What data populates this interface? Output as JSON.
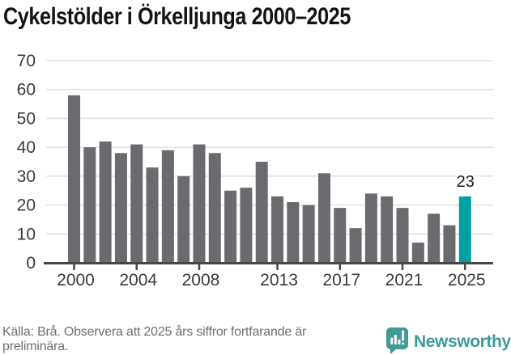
{
  "title": "Cykelstölder i Örkelljunga 2000–2025",
  "chart_data": {
    "type": "bar",
    "title": "Cykelstölder i Örkelljunga 2000–2025",
    "x": [
      2000,
      2001,
      2002,
      2003,
      2004,
      2005,
      2006,
      2007,
      2008,
      2009,
      2010,
      2011,
      2012,
      2013,
      2014,
      2015,
      2016,
      2017,
      2018,
      2019,
      2020,
      2021,
      2022,
      2023,
      2024,
      2025
    ],
    "values": [
      58,
      40,
      42,
      38,
      41,
      33,
      39,
      30,
      41,
      38,
      25,
      26,
      35,
      23,
      21,
      20,
      31,
      19,
      12,
      24,
      23,
      19,
      7,
      17,
      13,
      23
    ],
    "highlight_x": 2025,
    "annotation": {
      "x": 2025,
      "text": "23"
    },
    "xticks": [
      2000,
      2004,
      2008,
      2013,
      2017,
      2021,
      2025
    ],
    "yticks": [
      0,
      10,
      20,
      30,
      40,
      50,
      60,
      70
    ],
    "ylim": [
      0,
      70
    ],
    "grid": "horizontal",
    "legend": "none",
    "bar_color": "#6b6b6f",
    "highlight_color": "#00a0a3",
    "axis_color": "#47474a",
    "gridline_color": "#e3e3e3",
    "tick_label_color": "#3a3a3a",
    "annotation_color": "#1d1d1d"
  },
  "footer": {
    "note": "Källa: Brå. Observera att 2025 års siffror fortfarande är preliminära."
  },
  "branding": {
    "name": "Newsworthy",
    "icon": "newsworthy-speech-bubble-chart-icon",
    "color": "#3d9c98"
  }
}
